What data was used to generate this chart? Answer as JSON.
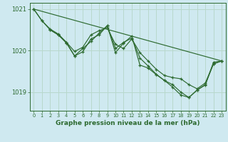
{
  "background_color": "#cfe9f0",
  "grid_color": "#b8d8cc",
  "line_color": "#2d6a30",
  "marker_color": "#2d6a30",
  "title": "Graphe pression niveau de la mer (hPa)",
  "xlim": [
    -0.5,
    23.5
  ],
  "ylim": [
    1018.55,
    1021.15
  ],
  "yticks": [
    1019,
    1020,
    1021
  ],
  "xticks": [
    0,
    1,
    2,
    3,
    4,
    5,
    6,
    7,
    8,
    9,
    10,
    11,
    12,
    13,
    14,
    15,
    16,
    17,
    18,
    19,
    20,
    21,
    22,
    23
  ],
  "series": [
    {
      "x": [
        0,
        1,
        2,
        3,
        4,
        5,
        6,
        7,
        8,
        9,
        10,
        11,
        12,
        13,
        14,
        15,
        16,
        17,
        18,
        19,
        20,
        21,
        22,
        23
      ],
      "y": [
        1021.0,
        1020.72,
        1020.5,
        1020.38,
        1020.18,
        1019.87,
        1019.97,
        1020.28,
        1020.38,
        1020.6,
        1020.05,
        1020.2,
        1020.3,
        1019.82,
        1019.63,
        1019.43,
        1019.28,
        1019.12,
        1018.93,
        1018.87,
        1019.05,
        1019.17,
        1019.72,
        1019.75
      ]
    },
    {
      "x": [
        0,
        1,
        2,
        3,
        4,
        5,
        6,
        7,
        8,
        9,
        10,
        11,
        12,
        13,
        14,
        15,
        16,
        17,
        18,
        19,
        20,
        21,
        22,
        23
      ],
      "y": [
        1021.0,
        1020.72,
        1020.52,
        1020.4,
        1020.2,
        1019.98,
        1020.08,
        1020.38,
        1020.48,
        1020.55,
        1020.15,
        1020.05,
        1020.28,
        1019.95,
        1019.75,
        1019.55,
        1019.4,
        1019.35,
        1019.32,
        1019.18,
        1019.08,
        1019.22,
        1019.68,
        1019.75
      ]
    },
    {
      "x": [
        2,
        3,
        4,
        5,
        6,
        7,
        8,
        9,
        10,
        11,
        12,
        13,
        14,
        15,
        16,
        17,
        18,
        19,
        20,
        21,
        22,
        23
      ],
      "y": [
        1020.5,
        1020.38,
        1020.2,
        1019.87,
        1020.05,
        1020.22,
        1020.42,
        1020.6,
        1019.95,
        1020.18,
        1020.35,
        1019.65,
        1019.58,
        1019.42,
        1019.28,
        1019.18,
        1019.0,
        1018.87,
        1019.05,
        1019.18,
        1019.68,
        1019.75
      ]
    },
    {
      "x": [
        0,
        23
      ],
      "y": [
        1021.0,
        1019.75
      ]
    }
  ]
}
